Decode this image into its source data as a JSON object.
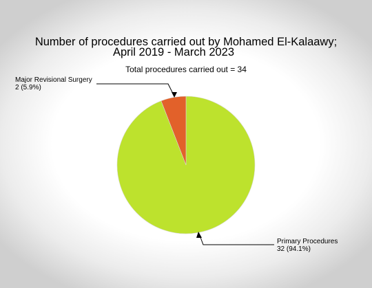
{
  "chart_data": {
    "type": "pie",
    "title_lines": [
      "Number of procedures carried out by Mohamed El-Kalaawy;",
      "April 2019 - March 2023"
    ],
    "subtitle": "Total procedures carried out = 34",
    "slices": [
      {
        "label": "Primary Procedures",
        "value": 32,
        "percent_text": "32 (94.1%)",
        "color": "#bde22d"
      },
      {
        "label": "Major Revisional Surgery",
        "value": 2,
        "percent_text": "2 (5.9%)",
        "color": "#e2612a"
      }
    ],
    "start_angle": "12 o'clock",
    "direction": "clockwise",
    "legend": "none"
  }
}
